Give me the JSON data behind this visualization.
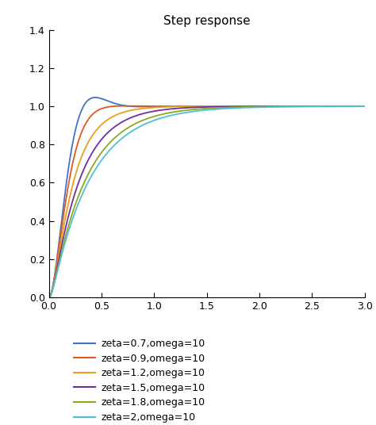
{
  "title": "Step response",
  "xlim": [
    0,
    3
  ],
  "ylim": [
    0,
    1.4
  ],
  "xticks": [
    0,
    0.5,
    1,
    1.5,
    2,
    2.5,
    3
  ],
  "yticks": [
    0,
    0.2,
    0.4,
    0.6,
    0.8,
    1,
    1.2,
    1.4
  ],
  "omega": 10,
  "zetas": [
    0.7,
    0.9,
    1.2,
    1.5,
    1.8,
    2.0
  ],
  "colors": [
    "#4472c4",
    "#e05a1e",
    "#e8a020",
    "#7030a0",
    "#8aaa20",
    "#50c0d0"
  ],
  "legend_labels": [
    "zeta=0.7,omega=10",
    "zeta=0.9,omega=10",
    "zeta=1.2,omega=10",
    "zeta=1.5,omega=10",
    "zeta=1.8,omega=10",
    "zeta=2,omega=10"
  ],
  "figsize": [
    4.74,
    5.36
  ],
  "dpi": 100,
  "background_color": "#ffffff",
  "title_fontsize": 11,
  "legend_fontsize": 9,
  "tick_labelsize": 9
}
